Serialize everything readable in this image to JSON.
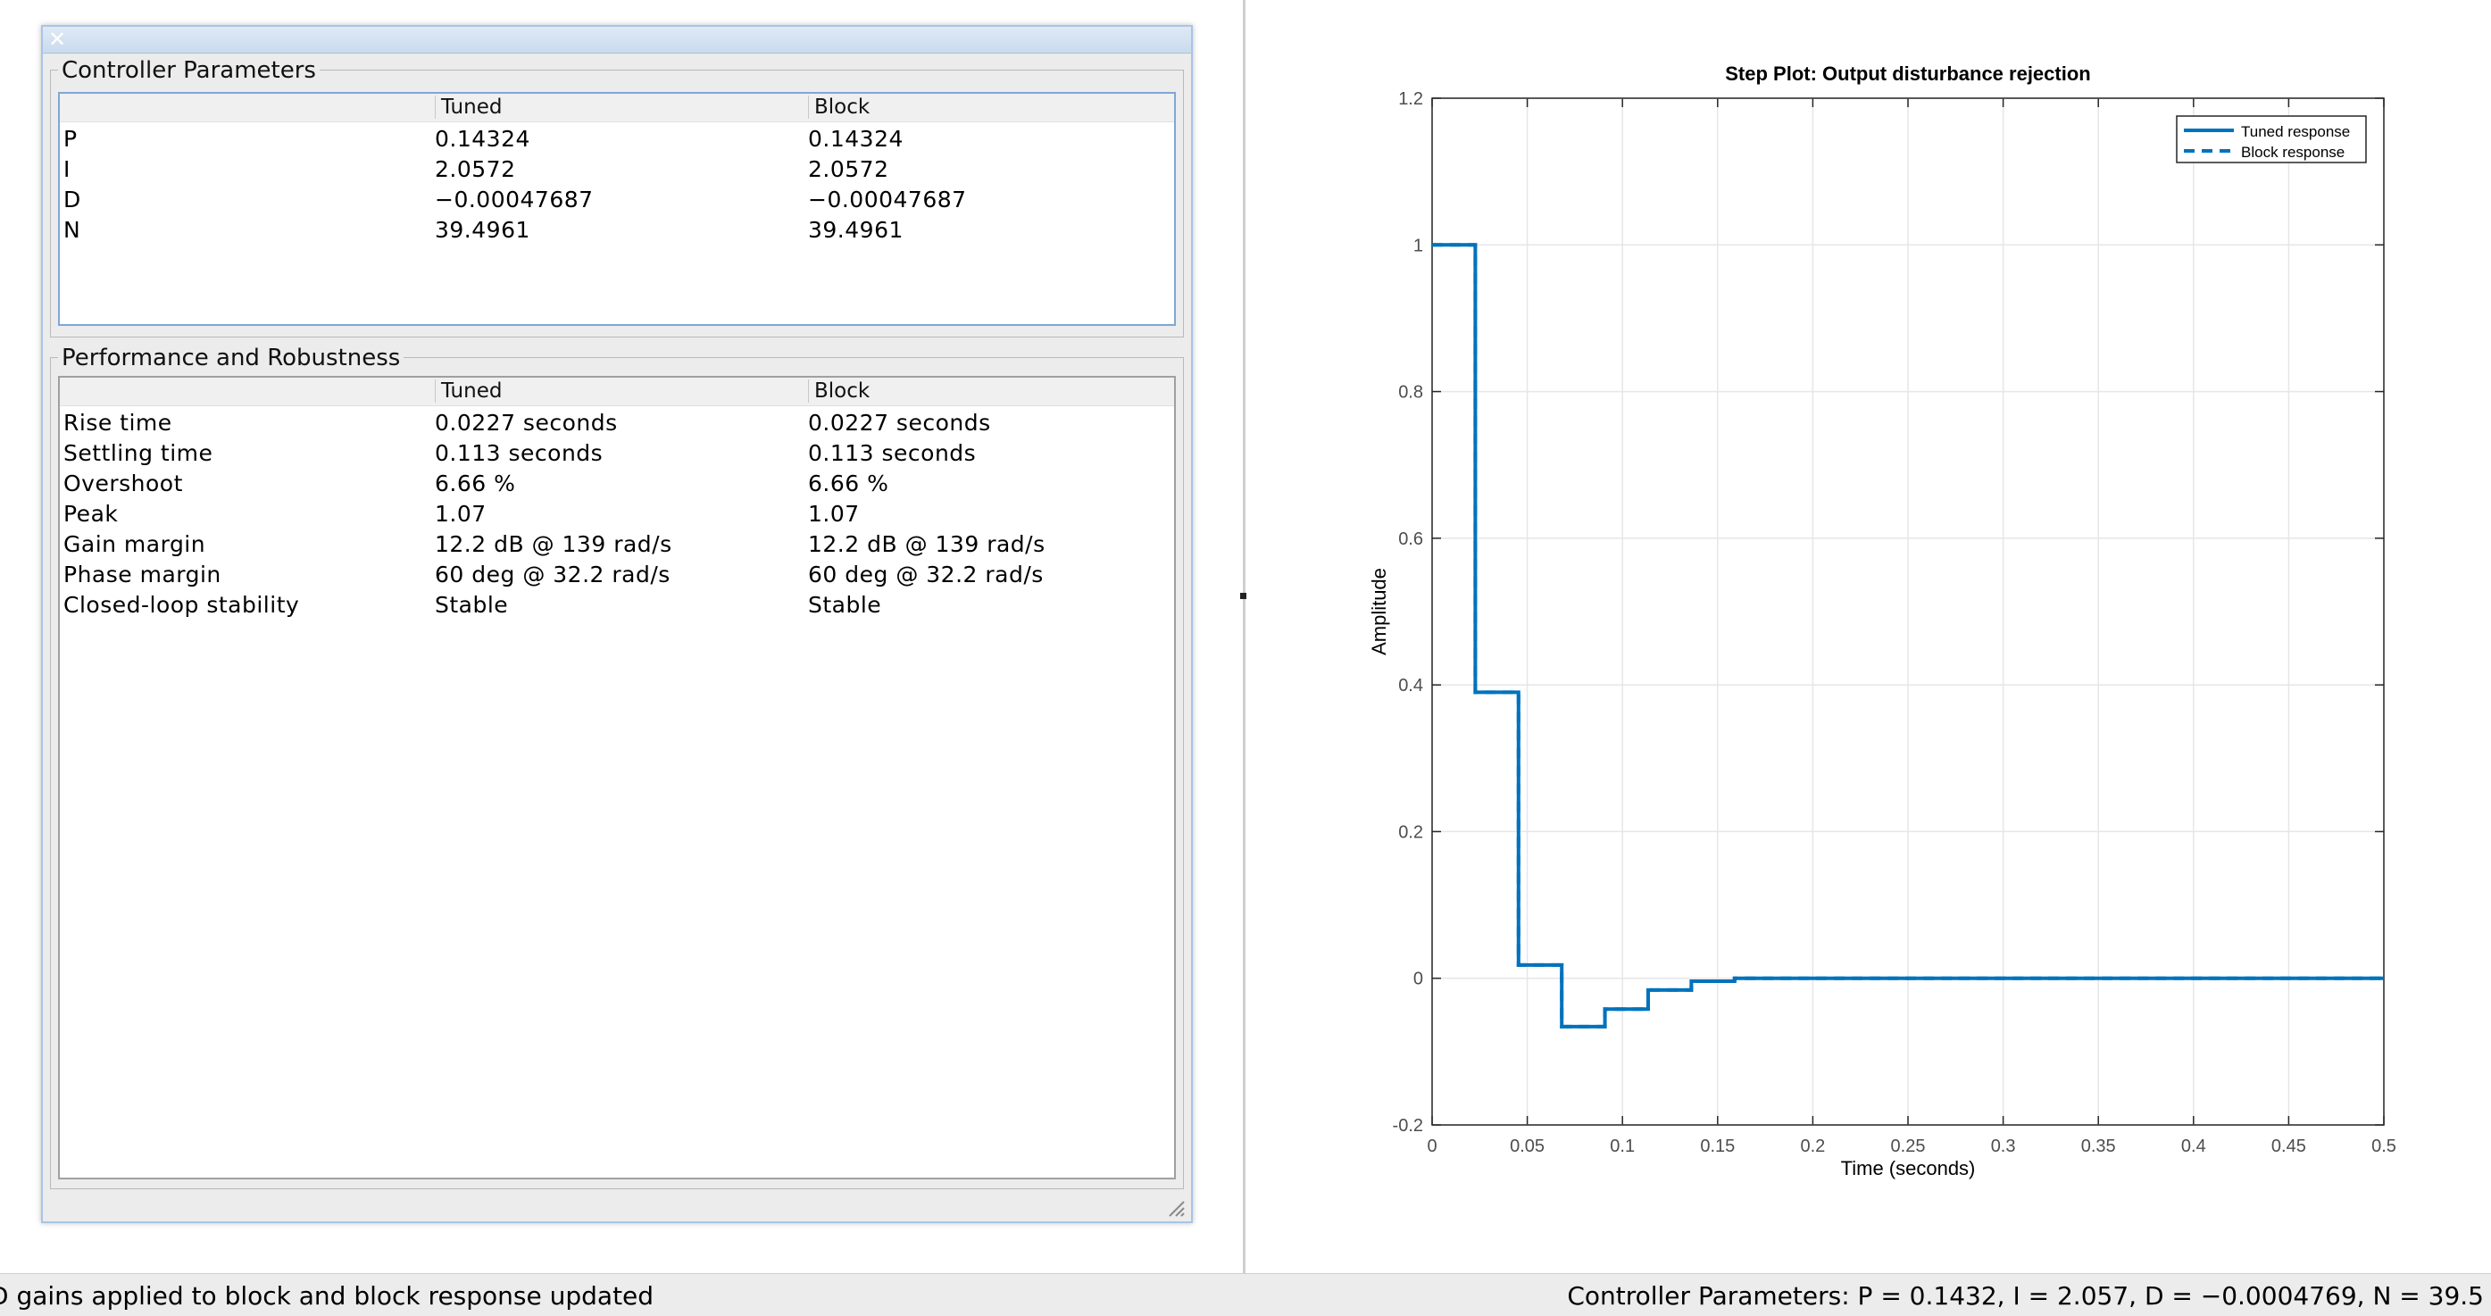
{
  "controller_parameters": {
    "title": "Controller Parameters",
    "columns": [
      "",
      "Tuned",
      "Block"
    ],
    "rows": [
      [
        "P",
        "0.14324",
        "0.14324"
      ],
      [
        "I",
        "2.0572",
        "2.0572"
      ],
      [
        "D",
        "−0.00047687",
        "−0.00047687"
      ],
      [
        "N",
        "39.4961",
        "39.4961"
      ]
    ]
  },
  "performance": {
    "title": "Performance and Robustness",
    "columns": [
      "",
      "Tuned",
      "Block"
    ],
    "rows": [
      [
        "Rise time",
        "0.0227 seconds",
        "0.0227 seconds"
      ],
      [
        "Settling time",
        "0.113 seconds",
        "0.113 seconds"
      ],
      [
        "Overshoot",
        "6.66 %",
        "6.66 %"
      ],
      [
        "Peak",
        "1.07",
        "1.07"
      ],
      [
        "Gain margin",
        "12.2 dB @ 139 rad/s",
        "12.2 dB @ 139 rad/s"
      ],
      [
        "Phase margin",
        "60 deg @ 32.2 rad/s",
        "60 deg @ 32.2 rad/s"
      ],
      [
        "Closed-loop stability",
        "Stable",
        "Stable"
      ]
    ]
  },
  "status": {
    "left": "D gains applied to block and block response updated",
    "right": "Controller Parameters: P = 0.1432, I = 2.057, D = −0.0004769, N = 39.5"
  },
  "colors": {
    "line": "#0072bd",
    "grid": "#e6e6e6",
    "axis": "#262626"
  },
  "chart_data": {
    "type": "line",
    "title": "Step Plot: Output disturbance rejection",
    "xlabel": "Time (seconds)",
    "ylabel": "Amplitude",
    "xlim": [
      0,
      0.5
    ],
    "ylim": [
      -0.2,
      1.2
    ],
    "xticks": [
      "0",
      "0.05",
      "0.1",
      "0.15",
      "0.2",
      "0.25",
      "0.3",
      "0.35",
      "0.4",
      "0.45",
      "0.5"
    ],
    "yticks": [
      "-0.2",
      "0",
      "0.2",
      "0.4",
      "0.6",
      "0.8",
      "1",
      "1.2"
    ],
    "grid": true,
    "legend_position": "top-right",
    "series": [
      {
        "name": "Tuned response",
        "style": "solid",
        "x": [
          0,
          0.0227,
          0.0227,
          0.0454,
          0.0454,
          0.0681,
          0.0681,
          0.0908,
          0.0908,
          0.1135,
          0.1135,
          0.1362,
          0.1362,
          0.1589,
          0.1589,
          0.5
        ],
        "y": [
          1,
          1,
          0.39,
          0.39,
          0.018,
          0.018,
          -0.066,
          -0.066,
          -0.042,
          -0.042,
          -0.016,
          -0.016,
          -0.004,
          -0.004,
          0,
          0
        ]
      },
      {
        "name": "Block response",
        "style": "dashed",
        "x": [
          0,
          0.0227,
          0.0227,
          0.0454,
          0.0454,
          0.0681,
          0.0681,
          0.0908,
          0.0908,
          0.1135,
          0.1135,
          0.1362,
          0.1362,
          0.1589,
          0.1589,
          0.5
        ],
        "y": [
          1,
          1,
          0.39,
          0.39,
          0.018,
          0.018,
          -0.066,
          -0.066,
          -0.042,
          -0.042,
          -0.016,
          -0.016,
          -0.004,
          -0.004,
          0,
          0
        ]
      }
    ]
  }
}
